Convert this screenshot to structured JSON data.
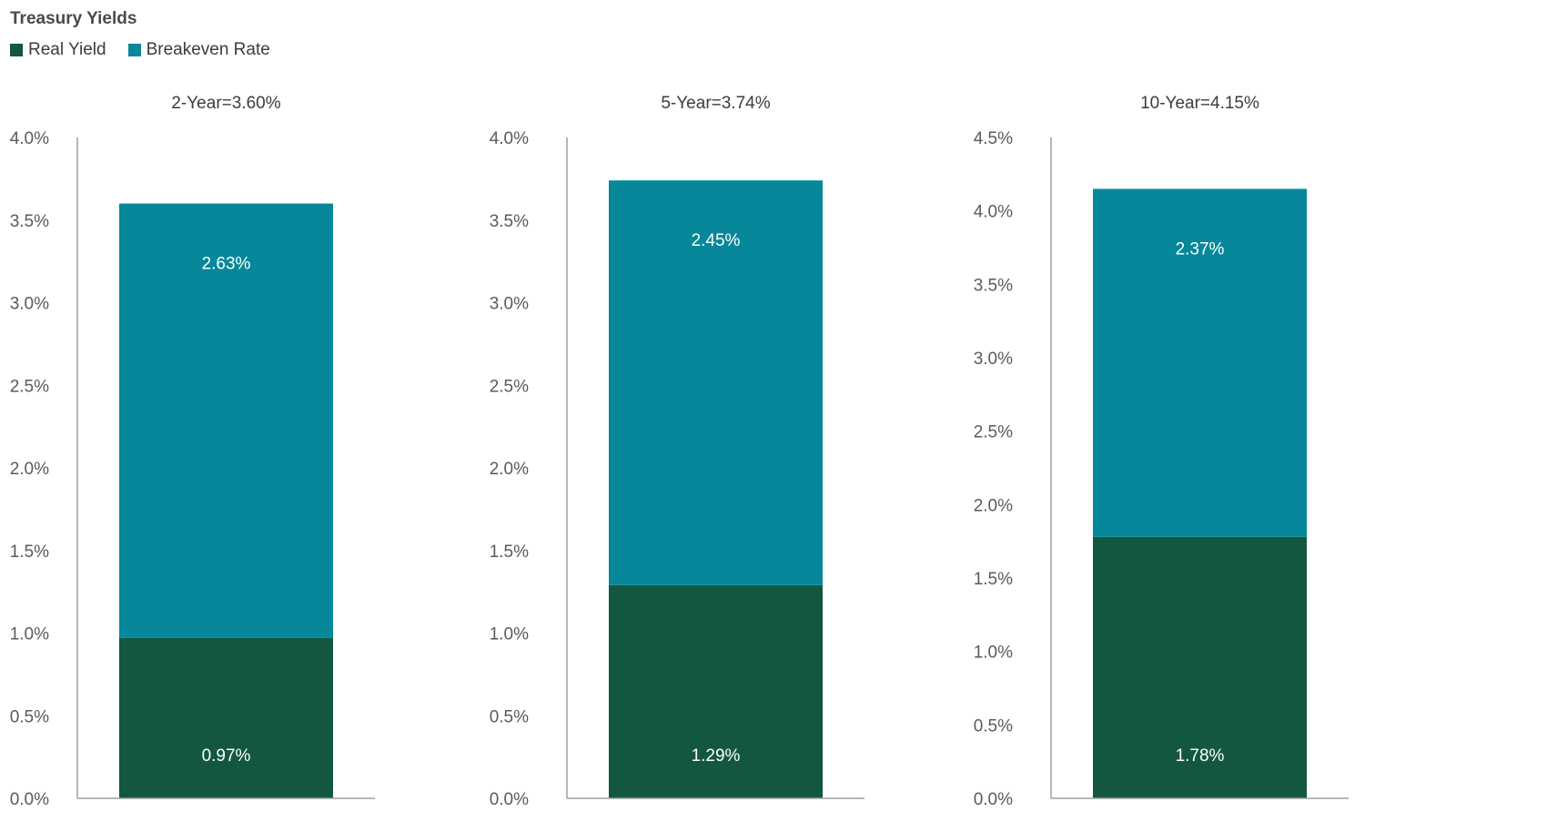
{
  "title": "Treasury Yields",
  "legend": [
    {
      "label": "Real Yield",
      "color": "#135740"
    },
    {
      "label": "Breakeven Rate",
      "color": "#07879a"
    }
  ],
  "colors": {
    "real_yield": "#135740",
    "breakeven": "#07879a",
    "axis": "#9e9e9e",
    "tick_text": "#5a5a5a"
  },
  "chart_data": [
    {
      "type": "bar",
      "stacked": true,
      "title": "2-Year=3.60%",
      "categories": [
        "2-Year"
      ],
      "series": [
        {
          "name": "Real Yield",
          "values": [
            0.97
          ],
          "label": "0.97%"
        },
        {
          "name": "Breakeven Rate",
          "values": [
            2.63
          ],
          "label": "2.63%"
        }
      ],
      "ylim": [
        0,
        4.0
      ],
      "yticks": [
        "0.0%",
        "0.5%",
        "1.0%",
        "1.5%",
        "2.0%",
        "2.5%",
        "3.0%",
        "3.5%",
        "4.0%"
      ],
      "ytick_values": [
        0,
        0.5,
        1.0,
        1.5,
        2.0,
        2.5,
        3.0,
        3.5,
        4.0
      ],
      "grid": false
    },
    {
      "type": "bar",
      "stacked": true,
      "title": "5-Year=3.74%",
      "categories": [
        "5-Year"
      ],
      "series": [
        {
          "name": "Real Yield",
          "values": [
            1.29
          ],
          "label": "1.29%"
        },
        {
          "name": "Breakeven Rate",
          "values": [
            2.45
          ],
          "label": "2.45%"
        }
      ],
      "ylim": [
        0,
        4.0
      ],
      "yticks": [
        "0.0%",
        "0.5%",
        "1.0%",
        "1.5%",
        "2.0%",
        "2.5%",
        "3.0%",
        "3.5%",
        "4.0%"
      ],
      "ytick_values": [
        0,
        0.5,
        1.0,
        1.5,
        2.0,
        2.5,
        3.0,
        3.5,
        4.0
      ],
      "grid": false
    },
    {
      "type": "bar",
      "stacked": true,
      "title": "10-Year=4.15%",
      "categories": [
        "10-Year"
      ],
      "series": [
        {
          "name": "Real Yield",
          "values": [
            1.78
          ],
          "label": "1.78%"
        },
        {
          "name": "Breakeven Rate",
          "values": [
            2.37
          ],
          "label": "2.37%"
        }
      ],
      "ylim": [
        0,
        4.5
      ],
      "yticks": [
        "0.0%",
        "0.5%",
        "1.0%",
        "1.5%",
        "2.0%",
        "2.5%",
        "3.0%",
        "3.5%",
        "4.0%",
        "4.5%"
      ],
      "ytick_values": [
        0,
        0.5,
        1.0,
        1.5,
        2.0,
        2.5,
        3.0,
        3.5,
        4.0,
        4.5
      ],
      "grid": false
    }
  ]
}
